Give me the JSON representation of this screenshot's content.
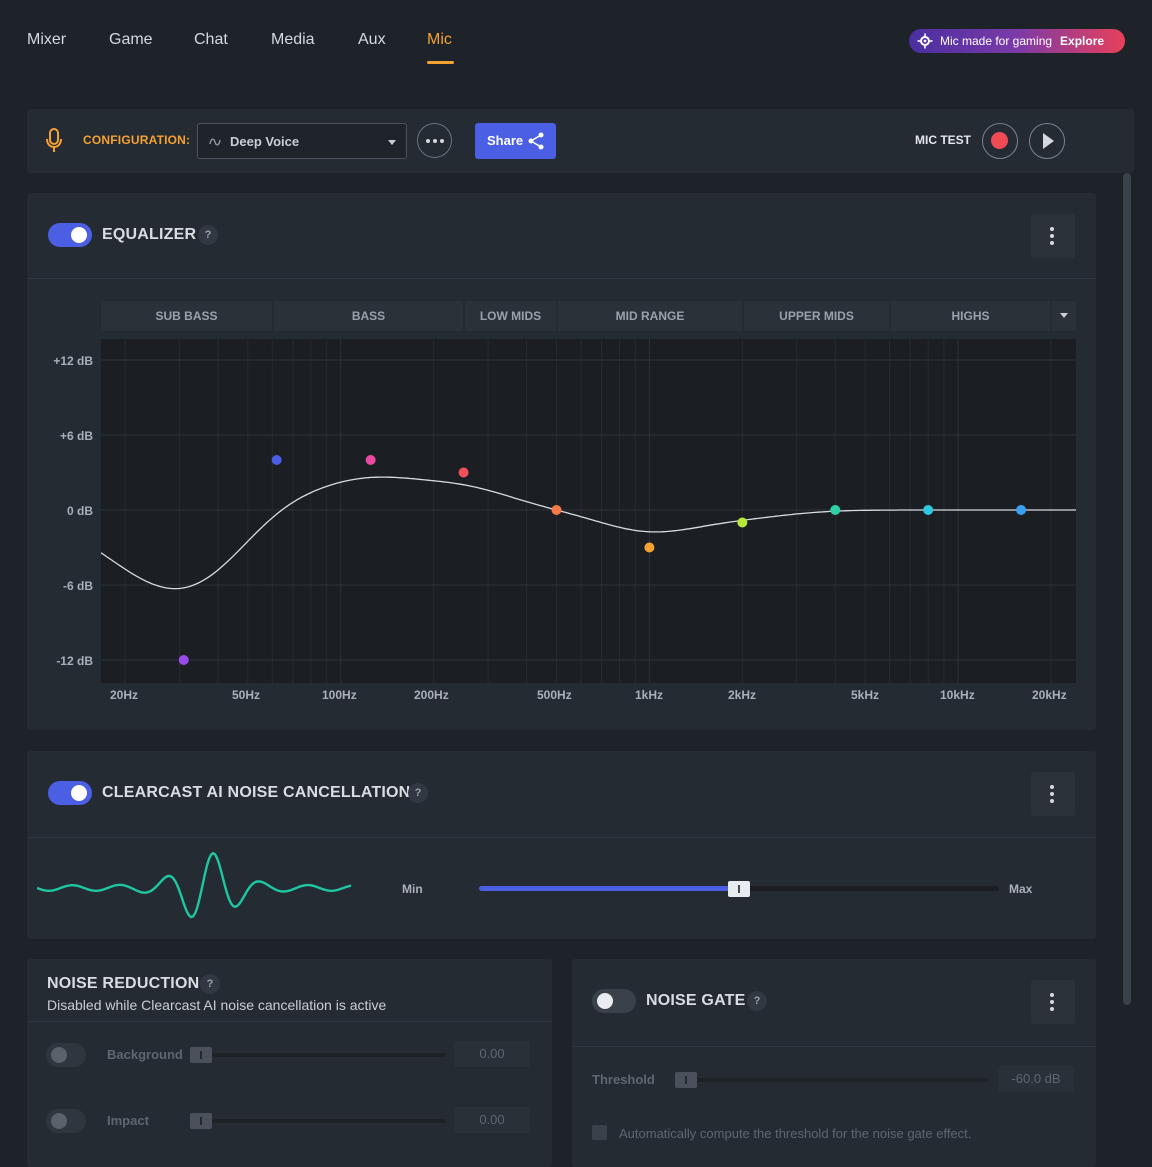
{
  "nav": {
    "tabs": [
      {
        "label": "Mixer"
      },
      {
        "label": "Game"
      },
      {
        "label": "Chat"
      },
      {
        "label": "Media"
      },
      {
        "label": "Aux"
      },
      {
        "label": "Mic"
      }
    ],
    "active_tab": "Mic",
    "promo": {
      "text": "Mic made for gaming",
      "action": "Explore"
    }
  },
  "config": {
    "label": "CONFIGURATION:",
    "selected": "Deep Voice",
    "share_label": "Share",
    "mic_test_label": "MIC TEST"
  },
  "equalizer": {
    "title": "EQUALIZER",
    "help": "?",
    "enabled": true,
    "bands": [
      "SUB BASS",
      "BASS",
      "LOW MIDS",
      "MID RANGE",
      "UPPER MIDS",
      "HIGHS"
    ],
    "db_labels": [
      "+12 dB",
      "+6 dB",
      "0 dB",
      "-6 dB",
      "-12 dB"
    ],
    "hz_labels": [
      "20Hz",
      "50Hz",
      "100Hz",
      "200Hz",
      "500Hz",
      "1kHz",
      "2kHz",
      "5kHz",
      "10kHz",
      "20kHz"
    ],
    "points": [
      {
        "freq_hz": 31,
        "gain_db": -12,
        "color": "#9b4ae8"
      },
      {
        "freq_hz": 62,
        "gain_db": 4,
        "color": "#4b5fe4"
      },
      {
        "freq_hz": 125,
        "gain_db": 4,
        "color": "#e84a9f"
      },
      {
        "freq_hz": 250,
        "gain_db": 3,
        "color": "#f0505a"
      },
      {
        "freq_hz": 500,
        "gain_db": 0,
        "color": "#f57a45"
      },
      {
        "freq_hz": 1000,
        "gain_db": -3,
        "color": "#f5a132"
      },
      {
        "freq_hz": 2000,
        "gain_db": -1,
        "color": "#b8e83a"
      },
      {
        "freq_hz": 4000,
        "gain_db": 0,
        "color": "#2ed0a8"
      },
      {
        "freq_hz": 8000,
        "gain_db": 0,
        "color": "#2ec8e0"
      },
      {
        "freq_hz": 16000,
        "gain_db": 0,
        "color": "#3aa0f0"
      }
    ]
  },
  "clearcast": {
    "title": "CLEARCAST AI NOISE CANCELLATION",
    "help": "?",
    "enabled": true,
    "min_label": "Min",
    "max_label": "Max",
    "level": 0.5
  },
  "noise_reduction": {
    "title": "NOISE REDUCTION",
    "help": "?",
    "subtitle": "Disabled while Clearcast AI noise cancellation is active",
    "rows": [
      {
        "label": "Background",
        "value": "0.00"
      },
      {
        "label": "Impact",
        "value": "0.00"
      }
    ]
  },
  "noise_gate": {
    "title": "NOISE GATE",
    "help": "?",
    "enabled": false,
    "threshold_label": "Threshold",
    "threshold_value": "-60.0 dB",
    "auto_label": "Automatically compute the threshold for the noise gate effect."
  },
  "colors": {
    "accent": "#f5a132",
    "primary": "#4b5fe4",
    "record": "#f04a55",
    "wave": "#1fc7a0"
  }
}
